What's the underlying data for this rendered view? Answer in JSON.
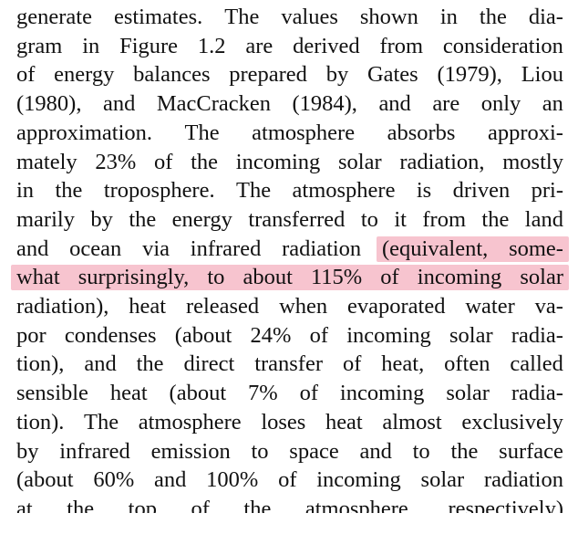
{
  "document": {
    "lines": [
      "generate estimates. The values shown in the dia-",
      "gram in Figure 1.2 are derived from consideration",
      "of energy balances prepared by Gates (1979), Liou",
      "(1980), and MacCracken (1984), and are only an",
      "approximation. The atmosphere absorbs approxi-",
      "mately 23% of the incoming solar radiation, mostly",
      "in the troposphere. The atmosphere is driven pri-",
      "marily by the energy transferred to it from the land",
      "and ocean via infrared radiation (equivalent, some-",
      "what surprisingly, to about 115% of incoming solar",
      "radiation), heat released when evaporated water va-",
      "por condenses (about 24% of incoming solar radia-",
      "tion), and the direct transfer of heat, often called",
      "sensible heat (about 7% of incoming solar radia-",
      "tion). The atmosphere loses heat almost exclusively",
      "by infrared emission to space and to the surface",
      "(about 60% and 100% of incoming solar radiation",
      "at the top of the atmosphere, respectively)"
    ],
    "highlight": {
      "color": "#f7c4cf",
      "segments": [
        {
          "line": 8,
          "text": "(equivalent, some-"
        },
        {
          "line": 9,
          "text": "what surprisingly, to about 115% of incoming solar"
        },
        {
          "line": 10,
          "text": "radiation)"
        }
      ]
    },
    "text_color": "#111111"
  }
}
